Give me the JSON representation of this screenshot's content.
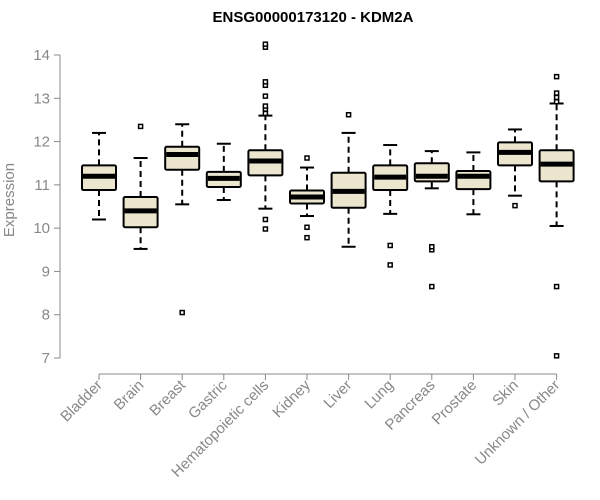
{
  "chart_data": {
    "type": "boxplot",
    "title": "ENSG00000173120 - KDM2A",
    "xlabel": "",
    "ylabel": "Expression",
    "ylim": [
      7,
      14
    ],
    "yticks": [
      7,
      8,
      9,
      10,
      11,
      12,
      13,
      14
    ],
    "grid": false,
    "categories": [
      "Bladder",
      "Brain",
      "Breast",
      "Gastric",
      "Hematopoietic cells",
      "Kidney",
      "Liver",
      "Lung",
      "Pancreas",
      "Prostate",
      "Skin",
      "Unknown / Other"
    ],
    "boxes": [
      {
        "category": "Bladder",
        "whisker_low": 10.2,
        "q1": 10.88,
        "median": 11.2,
        "q3": 11.45,
        "whisker_high": 12.2,
        "outliers": []
      },
      {
        "category": "Brain",
        "whisker_low": 9.52,
        "q1": 10.02,
        "median": 10.4,
        "q3": 10.72,
        "whisker_high": 11.62,
        "outliers": [
          12.35
        ]
      },
      {
        "category": "Breast",
        "whisker_low": 10.55,
        "q1": 11.35,
        "median": 11.7,
        "q3": 11.88,
        "whisker_high": 12.4,
        "outliers": [
          8.05
        ]
      },
      {
        "category": "Gastric",
        "whisker_low": 10.65,
        "q1": 10.95,
        "median": 11.15,
        "q3": 11.3,
        "whisker_high": 11.95,
        "outliers": []
      },
      {
        "category": "Hematopoietic cells",
        "whisker_low": 10.45,
        "q1": 11.22,
        "median": 11.55,
        "q3": 11.8,
        "whisker_high": 12.6,
        "outliers": [
          9.98,
          10.2,
          12.65,
          12.75,
          12.82,
          13.05,
          13.3,
          13.38,
          14.18,
          14.25
        ]
      },
      {
        "category": "Kidney",
        "whisker_low": 10.28,
        "q1": 10.57,
        "median": 10.72,
        "q3": 10.87,
        "whisker_high": 11.4,
        "outliers": [
          9.78,
          10.02,
          11.62
        ]
      },
      {
        "category": "Liver",
        "whisker_low": 9.57,
        "q1": 10.47,
        "median": 10.85,
        "q3": 11.28,
        "whisker_high": 12.2,
        "outliers": [
          12.62
        ]
      },
      {
        "category": "Lung",
        "whisker_low": 10.33,
        "q1": 10.88,
        "median": 11.18,
        "q3": 11.45,
        "whisker_high": 11.92,
        "outliers": [
          9.15,
          9.6
        ]
      },
      {
        "category": "Pancreas",
        "whisker_low": 10.92,
        "q1": 11.08,
        "median": 11.2,
        "q3": 11.5,
        "whisker_high": 11.78,
        "outliers": [
          8.65,
          9.5,
          9.57
        ]
      },
      {
        "category": "Prostate",
        "whisker_low": 10.32,
        "q1": 10.9,
        "median": 11.2,
        "q3": 11.32,
        "whisker_high": 11.75,
        "outliers": []
      },
      {
        "category": "Skin",
        "whisker_low": 10.75,
        "q1": 11.45,
        "median": 11.75,
        "q3": 11.98,
        "whisker_high": 12.28,
        "outliers": [
          10.52
        ]
      },
      {
        "category": "Unknown / Other",
        "whisker_low": 10.05,
        "q1": 11.08,
        "median": 11.48,
        "q3": 11.8,
        "whisker_high": 12.88,
        "outliers": [
          7.05,
          8.65,
          12.92,
          13.02,
          13.12,
          13.5
        ]
      }
    ],
    "colors": {
      "box_fill": "#ede6cf",
      "box_stroke": "#000000",
      "median": "#000000",
      "axis": "#888888",
      "tick_label": "#888888",
      "title": "#000000"
    }
  }
}
